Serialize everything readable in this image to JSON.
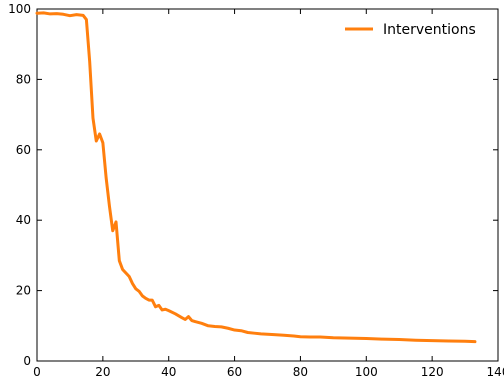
{
  "chart_data": {
    "type": "line",
    "title": "",
    "xlabel": "",
    "ylabel": "",
    "xlim": [
      0,
      140
    ],
    "ylim": [
      0,
      100
    ],
    "xticks": [
      0,
      20,
      40,
      60,
      80,
      100,
      120,
      140
    ],
    "yticks": [
      0,
      20,
      40,
      60,
      80,
      100
    ],
    "xtick_labels": [
      "0",
      "20",
      "40",
      "60",
      "80",
      "100",
      "120",
      "140"
    ],
    "ytick_labels": [
      "0",
      "20",
      "40",
      "60",
      "80",
      "100"
    ],
    "grid": false,
    "legend": {
      "position": "top-right",
      "entries": [
        "Interventions"
      ]
    },
    "series": [
      {
        "name": "Interventions",
        "color": "#ff7f0e",
        "x": [
          0,
          2,
          4,
          6,
          8,
          10,
          12,
          14,
          15,
          16,
          17,
          18,
          19,
          20,
          21,
          22,
          23,
          24,
          25,
          26,
          27,
          28,
          29,
          30,
          31,
          32,
          33,
          34,
          35,
          36,
          37,
          38,
          39,
          40,
          42,
          44,
          45,
          46,
          47,
          48,
          50,
          52,
          54,
          56,
          58,
          60,
          62,
          64,
          66,
          68,
          70,
          72,
          75,
          78,
          80,
          83,
          86,
          90,
          95,
          100,
          105,
          110,
          115,
          120,
          125,
          130,
          133
        ],
        "y": [
          98.8,
          98.9,
          98.6,
          98.7,
          98.5,
          98.1,
          98.4,
          98.2,
          97.0,
          85.0,
          69.0,
          62.5,
          64.5,
          62.0,
          52.0,
          44.0,
          37.0,
          39.5,
          28.5,
          26.0,
          25.0,
          24.0,
          22.0,
          20.5,
          19.8,
          18.5,
          17.8,
          17.3,
          17.3,
          15.4,
          15.8,
          14.5,
          14.7,
          14.3,
          13.4,
          12.3,
          11.8,
          12.6,
          11.5,
          11.2,
          10.7,
          10.0,
          9.8,
          9.7,
          9.3,
          8.8,
          8.6,
          8.1,
          7.9,
          7.7,
          7.6,
          7.5,
          7.3,
          7.1,
          6.9,
          6.8,
          6.8,
          6.6,
          6.5,
          6.4,
          6.2,
          6.1,
          5.9,
          5.8,
          5.7,
          5.6,
          5.5
        ]
      }
    ]
  }
}
